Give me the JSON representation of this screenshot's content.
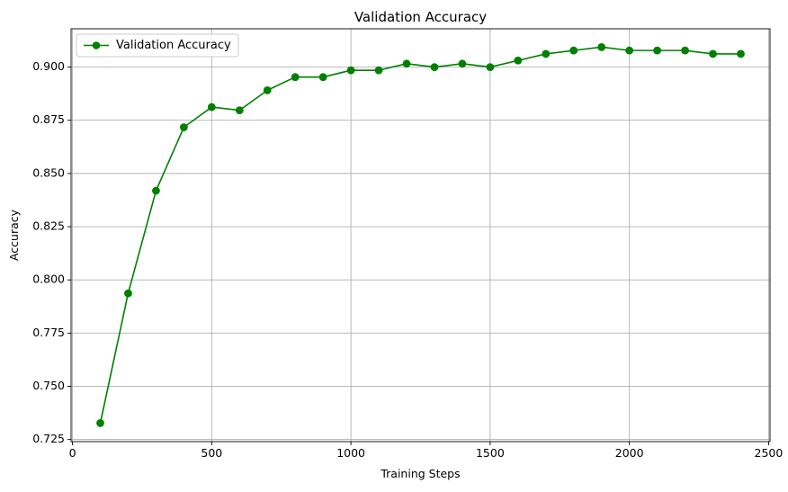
{
  "chart_data": {
    "type": "line",
    "title": "Validation Accuracy",
    "xlabel": "Training Steps",
    "ylabel": "Accuracy",
    "xlim": [
      -5,
      2505
    ],
    "ylim": [
      0.724,
      0.918
    ],
    "xticks": [
      0,
      500,
      1000,
      1500,
      2000,
      2500
    ],
    "xtick_labels": [
      "0",
      "500",
      "1000",
      "1500",
      "2000",
      "2500"
    ],
    "yticks": [
      0.725,
      0.75,
      0.775,
      0.8,
      0.825,
      0.85,
      0.875,
      0.9
    ],
    "ytick_labels": [
      "0.725",
      "0.750",
      "0.775",
      "0.800",
      "0.825",
      "0.850",
      "0.875",
      "0.900"
    ],
    "grid": true,
    "legend_position": "top-left",
    "series": [
      {
        "name": "Validation Accuracy",
        "color": "#008000",
        "marker": "circle",
        "x": [
          100,
          200,
          300,
          400,
          500,
          600,
          700,
          800,
          900,
          1000,
          1100,
          1200,
          1300,
          1400,
          1500,
          1600,
          1700,
          1800,
          1900,
          2000,
          2100,
          2200,
          2300,
          2400
        ],
        "y": [
          0.7327,
          0.7937,
          0.8419,
          0.8717,
          0.8812,
          0.8797,
          0.8891,
          0.8953,
          0.8953,
          0.8985,
          0.8985,
          0.9016,
          0.9,
          0.9016,
          0.9,
          0.9031,
          0.9062,
          0.9078,
          0.9094,
          0.9078,
          0.9078,
          0.9078,
          0.9062,
          0.9062
        ]
      }
    ]
  }
}
